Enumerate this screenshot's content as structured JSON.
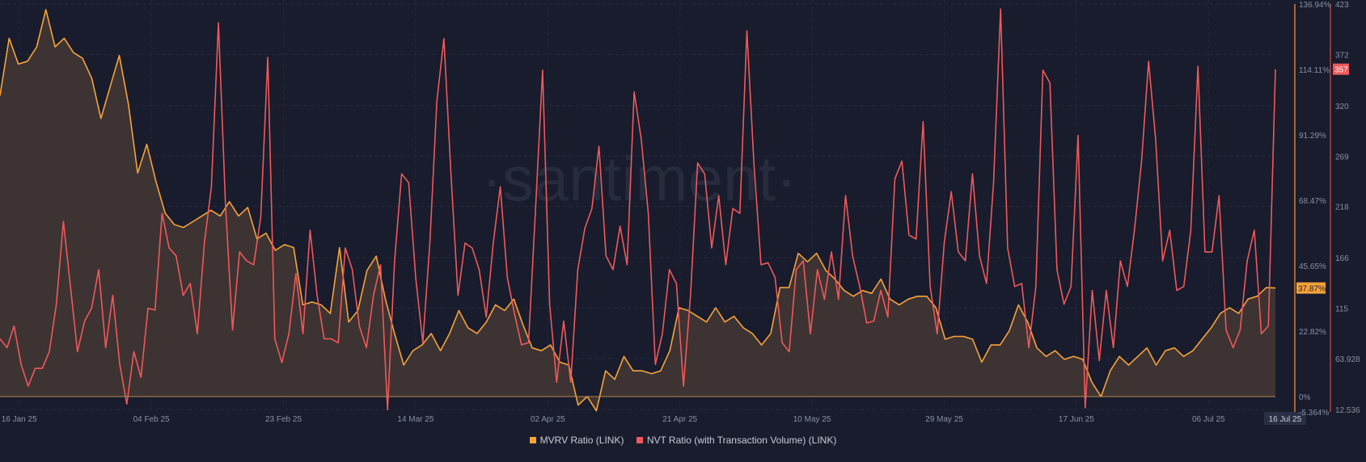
{
  "chart_data": {
    "type": "line",
    "watermark": "·santiment·",
    "x_tick_labels": [
      "16 Jan 25",
      "04 Feb 25",
      "23 Feb 25",
      "14 Mar 25",
      "02 Apr 25",
      "21 Apr 25",
      "10 May 25",
      "29 May 25",
      "17 Jun 25",
      "06 Jul 25"
    ],
    "x_tick_days": [
      0,
      19,
      38,
      57,
      76,
      95,
      114,
      133,
      152,
      171
    ],
    "x_end_label": "16 Jul 25",
    "x_end_day": 182,
    "x_range_days": [
      -2.75,
      180.6
    ],
    "y_left": {
      "ticks": [
        "136.94%",
        "114.11%",
        "91.29%",
        "68.47%",
        "45.65%",
        "22.82%",
        "0%",
        "-5.364%"
      ],
      "tick_values": [
        136.94,
        114.11,
        91.29,
        68.47,
        45.65,
        22.82,
        0,
        -5.364
      ],
      "range": [
        -5.364,
        136.94
      ]
    },
    "y_right": {
      "ticks": [
        "423",
        "372",
        "320",
        "269",
        "218",
        "166",
        "115",
        "63.928",
        "12.536"
      ],
      "tick_values": [
        423,
        372,
        320,
        269,
        218,
        166,
        115,
        63.928,
        12.536
      ],
      "range": [
        12.536,
        423
      ]
    },
    "series": [
      {
        "name": "MVRV Ratio (LINK)",
        "color": "#f6a33a",
        "axis": "left",
        "area": true,
        "last_label": "37.87%",
        "last_value": 37.87,
        "values": [
          105,
          125,
          116,
          117,
          122,
          135,
          122,
          125,
          120,
          118,
          111,
          97,
          108,
          119,
          102,
          78,
          88,
          75,
          64,
          60,
          59,
          61,
          63,
          65,
          63,
          68,
          63,
          66,
          55,
          57,
          51,
          53,
          52,
          32,
          33,
          32,
          29,
          52,
          26,
          30,
          44,
          49,
          34,
          22,
          11,
          16,
          18,
          22,
          16,
          22,
          30,
          24,
          22,
          26,
          32,
          30,
          34,
          25,
          17,
          16,
          18,
          12,
          11,
          -3,
          0,
          -5,
          9,
          6,
          14,
          9,
          9,
          8,
          9,
          16,
          31,
          30,
          28,
          26,
          31,
          26,
          28,
          24,
          22,
          18,
          22,
          38,
          38,
          50,
          47,
          50,
          44,
          41,
          37,
          35,
          37,
          36,
          41,
          34,
          32,
          34,
          35,
          35,
          31,
          20,
          21,
          21,
          20,
          12,
          18,
          18,
          23,
          32,
          26,
          17,
          14,
          16,
          13,
          14,
          13,
          5,
          0,
          9,
          14,
          11,
          14,
          17,
          11,
          16,
          17,
          14,
          16,
          20,
          24,
          29,
          31,
          29,
          34,
          35,
          38,
          37.87
        ]
      },
      {
        "name": "NVT Ratio (with Transaction Volume) (LINK)",
        "color": "#f0585a",
        "axis": "right",
        "area": false,
        "last_label": "357",
        "last_value": 357,
        "values": [
          84,
          75,
          97,
          58,
          36,
          54,
          54,
          71,
          119,
          203,
          137,
          71,
          102,
          115,
          154,
          75,
          128,
          58,
          18,
          71,
          45,
          115,
          113,
          211,
          176,
          168,
          128,
          140,
          89,
          181,
          238,
          404,
          220,
          93,
          172,
          163,
          159,
          207,
          369,
          84,
          60,
          89,
          150,
          89,
          194,
          128,
          84,
          84,
          80,
          176,
          154,
          97,
          75,
          128,
          159,
          12,
          163,
          251,
          242,
          146,
          80,
          181,
          325,
          388,
          251,
          128,
          181,
          176,
          154,
          106,
          181,
          238,
          146,
          110,
          78,
          80,
          216,
          356,
          119,
          40,
          102,
          40,
          154,
          196,
          216,
          279,
          168,
          154,
          198,
          159,
          334,
          286,
          211,
          58,
          89,
          154,
          140,
          36,
          128,
          262,
          251,
          176,
          229,
          159,
          216,
          211,
          396,
          260,
          159,
          161,
          146,
          80,
          71,
          154,
          163,
          89,
          154,
          124,
          172,
          124,
          229,
          168,
          137,
          100,
          102,
          133,
          106,
          246,
          264,
          189,
          185,
          304,
          137,
          89,
          181,
          233,
          172,
          163,
          251,
          168,
          140,
          242,
          418,
          176,
          137,
          140,
          75,
          137,
          356,
          343,
          154,
          119,
          137,
          290,
          14,
          133,
          62,
          133,
          75,
          163,
          137,
          194,
          264,
          365,
          286,
          163,
          194,
          133,
          137,
          194,
          360,
          172,
          172,
          229,
          93,
          75,
          93,
          163,
          194,
          89,
          97,
          357
        ]
      }
    ],
    "legend_position": "bottom-center"
  }
}
